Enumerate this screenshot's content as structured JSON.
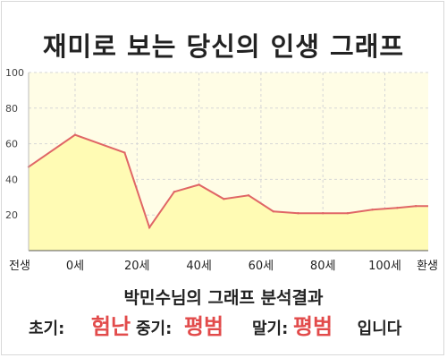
{
  "title": "재미로 보는 당신의 인생 그래프",
  "subtitle": "박민수님의 그래프 분석결과",
  "results": {
    "early_label": "초기:",
    "early_value": "험난",
    "mid_label": "중기:",
    "mid_value": "평범",
    "late_label": "말기:",
    "late_value": "평범",
    "suffix": "입니다"
  },
  "colors": {
    "plot_bg": "#fffde6",
    "area_fill": "#fffbb4",
    "line": "#e06666",
    "accent_text": "#e24b4b",
    "grid": "#d6d6d6"
  },
  "chart_data": {
    "type": "area",
    "x": [
      -15,
      0,
      16,
      24,
      32,
      40,
      48,
      56,
      64,
      72,
      80,
      88,
      96,
      104,
      110
    ],
    "values": [
      47,
      65,
      55,
      13,
      33,
      37,
      29,
      31,
      22,
      21,
      21,
      21,
      23,
      24,
      25
    ],
    "x_ticks": [
      {
        "x": -15,
        "label": "전생"
      },
      {
        "x": 0,
        "label": "0세"
      },
      {
        "x": 20,
        "label": "20세"
      },
      {
        "x": 40,
        "label": "40세"
      },
      {
        "x": 60,
        "label": "60세"
      },
      {
        "x": 80,
        "label": "80세"
      },
      {
        "x": 100,
        "label": "100세"
      },
      {
        "x": 114,
        "label": "환생"
      }
    ],
    "y_ticks": [
      20,
      40,
      60,
      80,
      100
    ],
    "ylim": [
      0,
      100
    ],
    "xlim": [
      -15,
      114
    ],
    "grid": true
  }
}
